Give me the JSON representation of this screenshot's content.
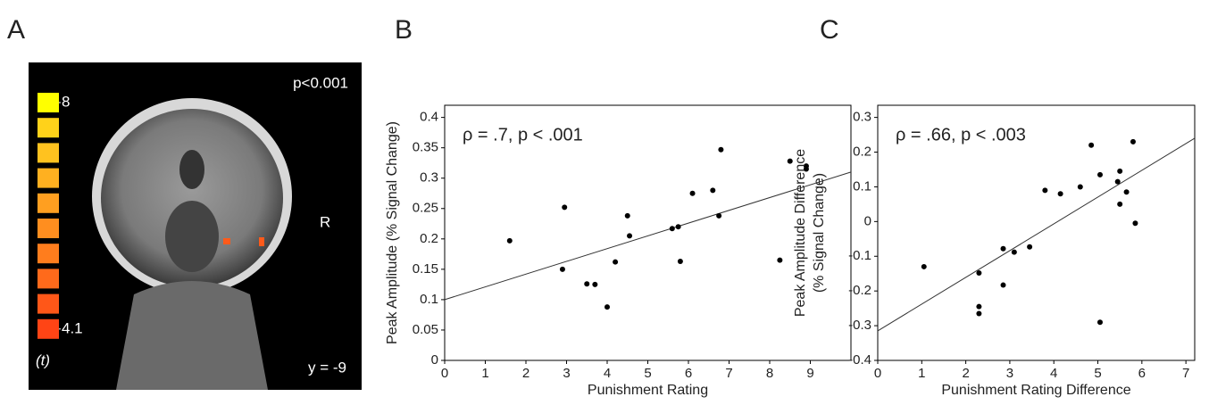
{
  "chart_data": [
    {
      "type": "image",
      "panel": "A",
      "annotations": {
        "threshold": "p<0.001",
        "side": "R",
        "slice": "y = -9"
      },
      "colorbar": {
        "ticks": [
          8,
          4.1
        ],
        "label": "(t)",
        "colors": [
          "#ffff00",
          "#ffd21a",
          "#ffc21f",
          "#ffb020",
          "#ff9f20",
          "#ff8e1f",
          "#ff7d1d",
          "#ff6a1b",
          "#ff5718",
          "#ff4415"
        ]
      }
    },
    {
      "type": "scatter",
      "panel": "B",
      "annotation": "ρ = .7, p < .001",
      "xlabel": "Punishment Rating",
      "ylabel": "Peak Amplitude (% Signal Change)",
      "xlim": [
        0,
        10
      ],
      "ylim": [
        0,
        0.42
      ],
      "xticks": [
        0,
        1,
        2,
        3,
        4,
        5,
        6,
        7,
        8,
        9
      ],
      "yticks": [
        0,
        0.05,
        0.1,
        0.15,
        0.2,
        0.25,
        0.3,
        0.35,
        0.4
      ],
      "x": [
        1.6,
        2.9,
        2.95,
        3.5,
        3.7,
        4.0,
        4.2,
        4.5,
        4.55,
        5.6,
        5.75,
        5.8,
        6.1,
        6.6,
        6.75,
        6.8,
        8.25,
        8.5,
        8.9,
        8.9
      ],
      "y": [
        0.197,
        0.15,
        0.252,
        0.126,
        0.125,
        0.088,
        0.162,
        0.238,
        0.205,
        0.217,
        0.22,
        0.163,
        0.275,
        0.28,
        0.238,
        0.347,
        0.165,
        0.328,
        0.32,
        0.315
      ],
      "fit": {
        "x": [
          0,
          10
        ],
        "y": [
          0.1,
          0.31
        ]
      },
      "color": "#000000"
    },
    {
      "type": "scatter",
      "panel": "C",
      "annotation": "ρ = .66, p < .003",
      "xlabel": "Punishment Rating Difference",
      "ylabel": [
        "Peak Amplitude Difference",
        "(% Signal Change)"
      ],
      "xlim": [
        0,
        7.2
      ],
      "ylim": [
        -0.4,
        0.335
      ],
      "xticks": [
        0,
        1,
        2,
        3,
        4,
        5,
        6,
        7
      ],
      "yticks": [
        -0.4,
        -0.3,
        -0.2,
        -0.1,
        0,
        0.1,
        0.2,
        0.3
      ],
      "x": [
        1.05,
        2.3,
        2.3,
        2.3,
        2.85,
        2.85,
        3.1,
        3.45,
        3.8,
        4.15,
        4.6,
        4.85,
        5.05,
        5.05,
        5.45,
        5.5,
        5.5,
        5.65,
        5.8,
        5.85
      ],
      "y": [
        -0.13,
        -0.148,
        -0.245,
        -0.265,
        -0.078,
        -0.183,
        -0.088,
        -0.073,
        0.09,
        0.08,
        0.1,
        0.22,
        0.135,
        -0.29,
        0.115,
        0.145,
        0.05,
        0.085,
        0.23,
        -0.005
      ],
      "fit": {
        "x": [
          0,
          7.2
        ],
        "y": [
          -0.315,
          0.24
        ]
      },
      "color": "#000000"
    }
  ]
}
